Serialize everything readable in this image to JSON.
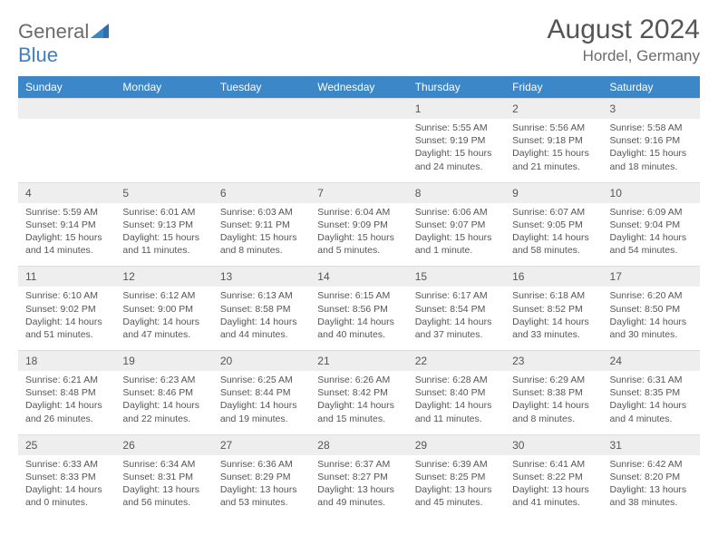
{
  "brand": {
    "part1": "General",
    "part2": "Blue"
  },
  "title": "August 2024",
  "location": "Hordel, Germany",
  "dow": [
    "Sunday",
    "Monday",
    "Tuesday",
    "Wednesday",
    "Thursday",
    "Friday",
    "Saturday"
  ],
  "colors": {
    "header_bg": "#3b87c8",
    "header_text": "#ffffff",
    "daynum_bg": "#eeeeee",
    "text": "#555555",
    "logo_gray": "#6b6b6b",
    "logo_blue": "#3b7fc4"
  },
  "weeks": [
    {
      "nums": [
        "",
        "",
        "",
        "",
        "1",
        "2",
        "3"
      ],
      "cells": [
        null,
        null,
        null,
        null,
        {
          "sr": "Sunrise: 5:55 AM",
          "ss": "Sunset: 9:19 PM",
          "dl1": "Daylight: 15 hours",
          "dl2": "and 24 minutes."
        },
        {
          "sr": "Sunrise: 5:56 AM",
          "ss": "Sunset: 9:18 PM",
          "dl1": "Daylight: 15 hours",
          "dl2": "and 21 minutes."
        },
        {
          "sr": "Sunrise: 5:58 AM",
          "ss": "Sunset: 9:16 PM",
          "dl1": "Daylight: 15 hours",
          "dl2": "and 18 minutes."
        }
      ]
    },
    {
      "nums": [
        "4",
        "5",
        "6",
        "7",
        "8",
        "9",
        "10"
      ],
      "cells": [
        {
          "sr": "Sunrise: 5:59 AM",
          "ss": "Sunset: 9:14 PM",
          "dl1": "Daylight: 15 hours",
          "dl2": "and 14 minutes."
        },
        {
          "sr": "Sunrise: 6:01 AM",
          "ss": "Sunset: 9:13 PM",
          "dl1": "Daylight: 15 hours",
          "dl2": "and 11 minutes."
        },
        {
          "sr": "Sunrise: 6:03 AM",
          "ss": "Sunset: 9:11 PM",
          "dl1": "Daylight: 15 hours",
          "dl2": "and 8 minutes."
        },
        {
          "sr": "Sunrise: 6:04 AM",
          "ss": "Sunset: 9:09 PM",
          "dl1": "Daylight: 15 hours",
          "dl2": "and 5 minutes."
        },
        {
          "sr": "Sunrise: 6:06 AM",
          "ss": "Sunset: 9:07 PM",
          "dl1": "Daylight: 15 hours",
          "dl2": "and 1 minute."
        },
        {
          "sr": "Sunrise: 6:07 AM",
          "ss": "Sunset: 9:05 PM",
          "dl1": "Daylight: 14 hours",
          "dl2": "and 58 minutes."
        },
        {
          "sr": "Sunrise: 6:09 AM",
          "ss": "Sunset: 9:04 PM",
          "dl1": "Daylight: 14 hours",
          "dl2": "and 54 minutes."
        }
      ]
    },
    {
      "nums": [
        "11",
        "12",
        "13",
        "14",
        "15",
        "16",
        "17"
      ],
      "cells": [
        {
          "sr": "Sunrise: 6:10 AM",
          "ss": "Sunset: 9:02 PM",
          "dl1": "Daylight: 14 hours",
          "dl2": "and 51 minutes."
        },
        {
          "sr": "Sunrise: 6:12 AM",
          "ss": "Sunset: 9:00 PM",
          "dl1": "Daylight: 14 hours",
          "dl2": "and 47 minutes."
        },
        {
          "sr": "Sunrise: 6:13 AM",
          "ss": "Sunset: 8:58 PM",
          "dl1": "Daylight: 14 hours",
          "dl2": "and 44 minutes."
        },
        {
          "sr": "Sunrise: 6:15 AM",
          "ss": "Sunset: 8:56 PM",
          "dl1": "Daylight: 14 hours",
          "dl2": "and 40 minutes."
        },
        {
          "sr": "Sunrise: 6:17 AM",
          "ss": "Sunset: 8:54 PM",
          "dl1": "Daylight: 14 hours",
          "dl2": "and 37 minutes."
        },
        {
          "sr": "Sunrise: 6:18 AM",
          "ss": "Sunset: 8:52 PM",
          "dl1": "Daylight: 14 hours",
          "dl2": "and 33 minutes."
        },
        {
          "sr": "Sunrise: 6:20 AM",
          "ss": "Sunset: 8:50 PM",
          "dl1": "Daylight: 14 hours",
          "dl2": "and 30 minutes."
        }
      ]
    },
    {
      "nums": [
        "18",
        "19",
        "20",
        "21",
        "22",
        "23",
        "24"
      ],
      "cells": [
        {
          "sr": "Sunrise: 6:21 AM",
          "ss": "Sunset: 8:48 PM",
          "dl1": "Daylight: 14 hours",
          "dl2": "and 26 minutes."
        },
        {
          "sr": "Sunrise: 6:23 AM",
          "ss": "Sunset: 8:46 PM",
          "dl1": "Daylight: 14 hours",
          "dl2": "and 22 minutes."
        },
        {
          "sr": "Sunrise: 6:25 AM",
          "ss": "Sunset: 8:44 PM",
          "dl1": "Daylight: 14 hours",
          "dl2": "and 19 minutes."
        },
        {
          "sr": "Sunrise: 6:26 AM",
          "ss": "Sunset: 8:42 PM",
          "dl1": "Daylight: 14 hours",
          "dl2": "and 15 minutes."
        },
        {
          "sr": "Sunrise: 6:28 AM",
          "ss": "Sunset: 8:40 PM",
          "dl1": "Daylight: 14 hours",
          "dl2": "and 11 minutes."
        },
        {
          "sr": "Sunrise: 6:29 AM",
          "ss": "Sunset: 8:38 PM",
          "dl1": "Daylight: 14 hours",
          "dl2": "and 8 minutes."
        },
        {
          "sr": "Sunrise: 6:31 AM",
          "ss": "Sunset: 8:35 PM",
          "dl1": "Daylight: 14 hours",
          "dl2": "and 4 minutes."
        }
      ]
    },
    {
      "nums": [
        "25",
        "26",
        "27",
        "28",
        "29",
        "30",
        "31"
      ],
      "cells": [
        {
          "sr": "Sunrise: 6:33 AM",
          "ss": "Sunset: 8:33 PM",
          "dl1": "Daylight: 14 hours",
          "dl2": "and 0 minutes."
        },
        {
          "sr": "Sunrise: 6:34 AM",
          "ss": "Sunset: 8:31 PM",
          "dl1": "Daylight: 13 hours",
          "dl2": "and 56 minutes."
        },
        {
          "sr": "Sunrise: 6:36 AM",
          "ss": "Sunset: 8:29 PM",
          "dl1": "Daylight: 13 hours",
          "dl2": "and 53 minutes."
        },
        {
          "sr": "Sunrise: 6:37 AM",
          "ss": "Sunset: 8:27 PM",
          "dl1": "Daylight: 13 hours",
          "dl2": "and 49 minutes."
        },
        {
          "sr": "Sunrise: 6:39 AM",
          "ss": "Sunset: 8:25 PM",
          "dl1": "Daylight: 13 hours",
          "dl2": "and 45 minutes."
        },
        {
          "sr": "Sunrise: 6:41 AM",
          "ss": "Sunset: 8:22 PM",
          "dl1": "Daylight: 13 hours",
          "dl2": "and 41 minutes."
        },
        {
          "sr": "Sunrise: 6:42 AM",
          "ss": "Sunset: 8:20 PM",
          "dl1": "Daylight: 13 hours",
          "dl2": "and 38 minutes."
        }
      ]
    }
  ]
}
